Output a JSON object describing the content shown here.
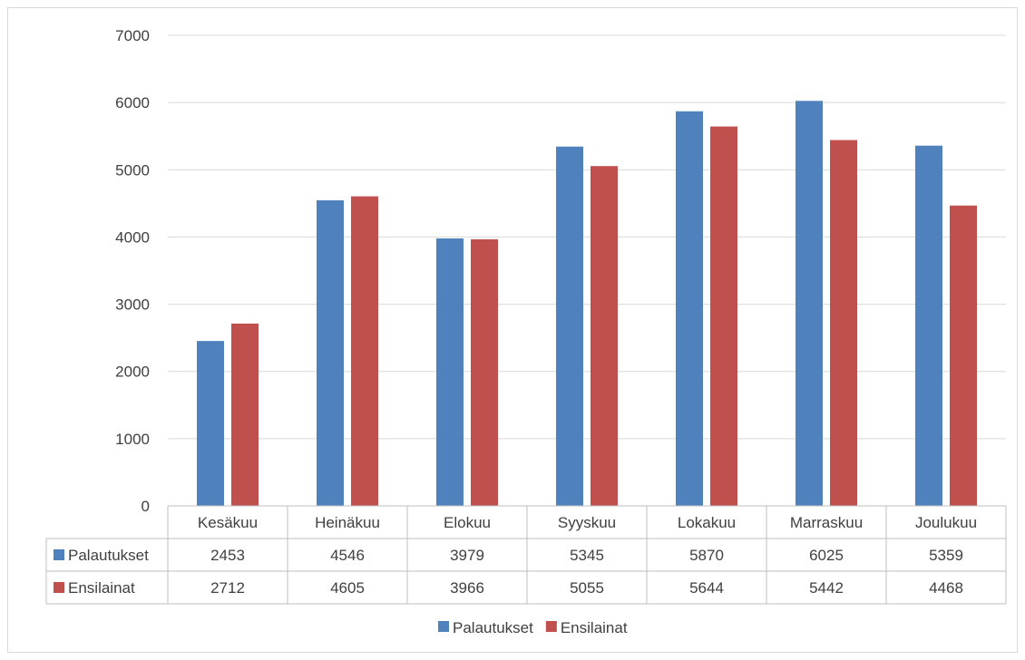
{
  "chart_data": {
    "type": "bar",
    "title": "",
    "xlabel": "",
    "ylabel": "",
    "ylim": [
      0,
      7000
    ],
    "yticks": [
      0,
      1000,
      2000,
      3000,
      4000,
      5000,
      6000,
      7000
    ],
    "grid": true,
    "legend_position": "bottom",
    "data_table": true,
    "categories": [
      "Kesäkuu",
      "Heinäkuu",
      "Elokuu",
      "Syyskuu",
      "Lokakuu",
      "Marraskuu",
      "Joulukuu"
    ],
    "series": [
      {
        "name": "Palautukset",
        "color": "#4f81bd",
        "values": [
          2453,
          4546,
          3979,
          5345,
          5870,
          6025,
          5359
        ]
      },
      {
        "name": "Ensilainat",
        "color": "#c0504d",
        "values": [
          2712,
          4605,
          3966,
          5055,
          5644,
          5442,
          4468
        ]
      }
    ]
  }
}
